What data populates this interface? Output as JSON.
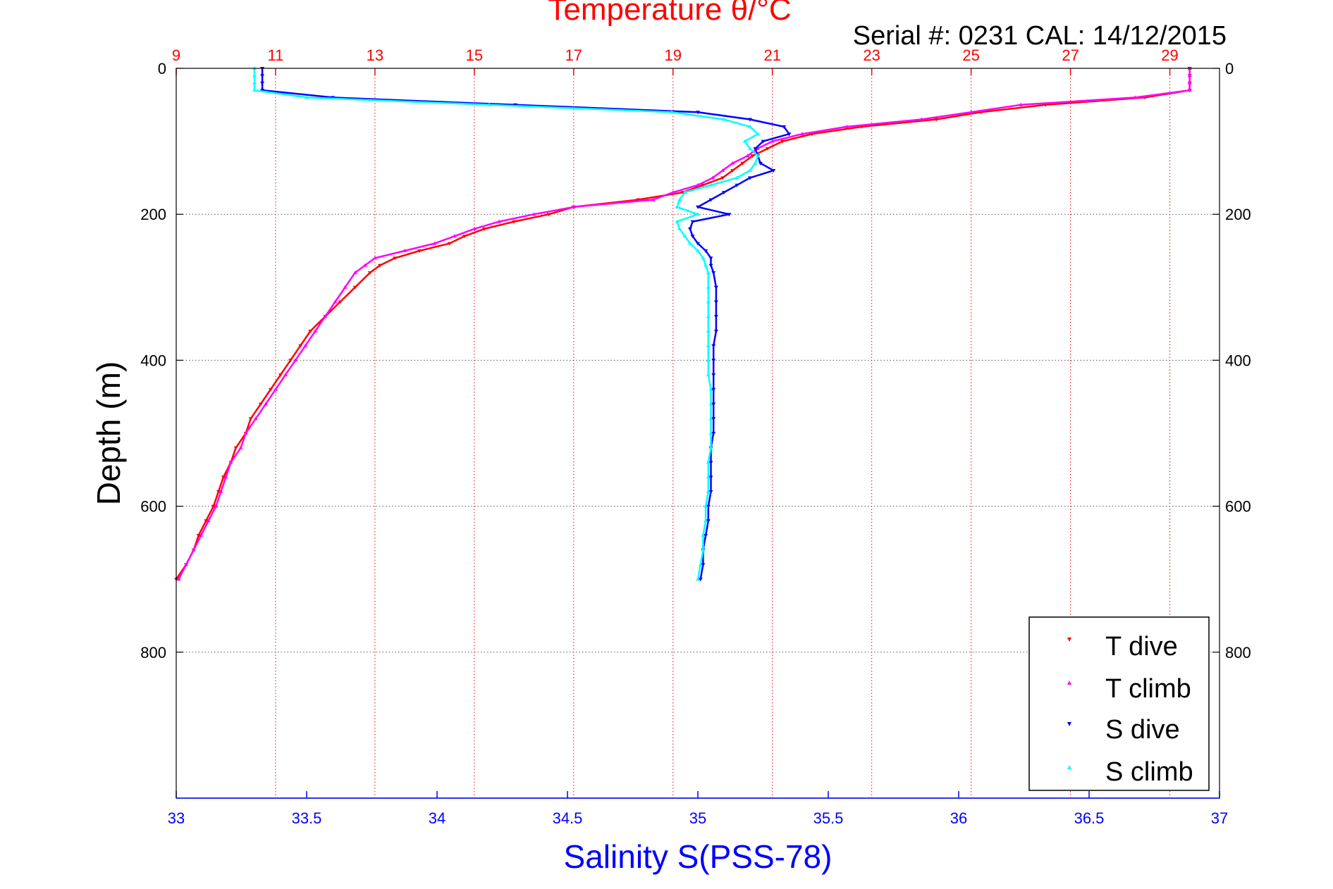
{
  "chart_data": {
    "type": "scatter",
    "title": "Temperature θ/°C",
    "subtitle": "Serial #: 0231  CAL: 14/12/2015",
    "xlabel": "Salinity S(PSS-78)",
    "ylabel": "Depth (m)",
    "y_reversed": true,
    "ylim": [
      0,
      1000
    ],
    "y_ticks": [
      0,
      200,
      400,
      600,
      800
    ],
    "x_top": {
      "label": "Temperature θ/°C",
      "lim": [
        9,
        30
      ],
      "ticks": [
        9,
        11,
        13,
        15,
        17,
        19,
        21,
        23,
        25,
        27,
        29
      ],
      "color": "#ff0000",
      "grid": "dotted-red"
    },
    "x_bottom": {
      "label": "Salinity S(PSS-78)",
      "lim": [
        33,
        37
      ],
      "ticks": [
        33,
        33.5,
        34,
        34.5,
        35,
        35.5,
        36,
        36.5,
        37
      ],
      "color": "#0000ff"
    },
    "y_grid": "dotted-black",
    "legend_position": "bottom-right",
    "series": [
      {
        "name": "T dive",
        "axis": "temperature",
        "color": "#ff0000",
        "marker": "triangle-down",
        "depth": [
          0,
          10,
          20,
          30,
          40,
          50,
          60,
          70,
          80,
          90,
          100,
          110,
          120,
          130,
          140,
          150,
          160,
          170,
          180,
          190,
          200,
          210,
          220,
          230,
          240,
          250,
          260,
          270,
          280,
          300,
          320,
          340,
          360,
          380,
          400,
          420,
          440,
          460,
          480,
          500,
          520,
          540,
          560,
          580,
          600,
          620,
          640,
          660,
          680,
          700
        ],
        "values": [
          29.4,
          29.4,
          29.4,
          29.4,
          28.5,
          26.5,
          25.2,
          24.3,
          22.8,
          21.8,
          21.2,
          20.9,
          20.6,
          20.4,
          20.2,
          20.0,
          19.6,
          19.2,
          18.3,
          17.0,
          16.5,
          15.8,
          15.2,
          14.8,
          14.5,
          13.9,
          13.4,
          13.1,
          12.9,
          12.6,
          12.3,
          12.0,
          11.7,
          11.5,
          11.3,
          11.1,
          10.9,
          10.7,
          10.5,
          10.4,
          10.2,
          10.1,
          9.95,
          9.85,
          9.75,
          9.6,
          9.45,
          9.35,
          9.2,
          9.0
        ]
      },
      {
        "name": "T climb",
        "axis": "temperature",
        "color": "#ff00ff",
        "marker": "triangle-up",
        "depth": [
          0,
          10,
          20,
          30,
          40,
          50,
          60,
          70,
          80,
          90,
          100,
          110,
          120,
          130,
          140,
          150,
          160,
          170,
          180,
          190,
          200,
          210,
          220,
          230,
          240,
          250,
          260,
          270,
          280,
          300,
          320,
          340,
          360,
          380,
          400,
          420,
          440,
          460,
          480,
          500,
          520,
          540,
          560,
          580,
          600,
          620,
          640,
          660,
          680,
          700
        ],
        "values": [
          29.4,
          29.4,
          29.4,
          29.4,
          28.3,
          26.0,
          25.0,
          24.0,
          22.5,
          21.6,
          21.0,
          20.7,
          20.5,
          20.2,
          20.0,
          19.8,
          19.5,
          19.0,
          18.6,
          17.0,
          16.2,
          15.5,
          15.0,
          14.6,
          14.2,
          13.6,
          13.0,
          12.8,
          12.6,
          12.4,
          12.2,
          12.0,
          11.8,
          11.6,
          11.4,
          11.2,
          11.0,
          10.8,
          10.6,
          10.4,
          10.3,
          10.1,
          10.0,
          9.9,
          9.8,
          9.65,
          9.5,
          9.35,
          9.2,
          9.05
        ]
      },
      {
        "name": "S dive",
        "axis": "salinity",
        "color": "#0000ff",
        "marker": "triangle-down",
        "depth": [
          0,
          10,
          20,
          30,
          40,
          50,
          60,
          70,
          80,
          90,
          100,
          110,
          120,
          130,
          140,
          150,
          160,
          170,
          180,
          190,
          200,
          210,
          220,
          230,
          240,
          250,
          260,
          270,
          280,
          300,
          320,
          340,
          360,
          380,
          400,
          420,
          440,
          460,
          480,
          500,
          520,
          540,
          560,
          580,
          600,
          620,
          640,
          660,
          680,
          700
        ],
        "values": [
          33.33,
          33.33,
          33.33,
          33.33,
          33.6,
          34.3,
          35.0,
          35.2,
          35.33,
          35.35,
          35.25,
          35.22,
          35.23,
          35.24,
          35.29,
          35.2,
          35.15,
          35.1,
          35.05,
          35.0,
          35.12,
          34.98,
          34.97,
          34.98,
          35.0,
          35.03,
          35.05,
          35.05,
          35.06,
          35.07,
          35.07,
          35.07,
          35.07,
          35.06,
          35.06,
          35.06,
          35.06,
          35.06,
          35.06,
          35.06,
          35.05,
          35.05,
          35.05,
          35.05,
          35.04,
          35.04,
          35.03,
          35.02,
          35.02,
          35.01
        ]
      },
      {
        "name": "S climb",
        "axis": "salinity",
        "color": "#00ffff",
        "marker": "triangle-up",
        "depth": [
          0,
          10,
          20,
          30,
          40,
          50,
          60,
          70,
          80,
          90,
          100,
          110,
          120,
          130,
          140,
          150,
          160,
          170,
          180,
          190,
          200,
          210,
          220,
          230,
          240,
          250,
          260,
          270,
          280,
          300,
          320,
          340,
          360,
          380,
          400,
          420,
          440,
          460,
          480,
          500,
          520,
          540,
          560,
          580,
          600,
          620,
          640,
          660,
          680,
          700
        ],
        "values": [
          33.3,
          33.3,
          33.3,
          33.3,
          33.5,
          34.2,
          34.9,
          35.1,
          35.2,
          35.23,
          35.18,
          35.2,
          35.23,
          35.22,
          35.2,
          35.15,
          35.05,
          34.95,
          34.93,
          34.92,
          35.0,
          34.92,
          34.93,
          34.95,
          34.97,
          35.0,
          35.02,
          35.03,
          35.04,
          35.04,
          35.04,
          35.04,
          35.04,
          35.04,
          35.04,
          35.04,
          35.05,
          35.05,
          35.05,
          35.05,
          35.05,
          35.04,
          35.04,
          35.04,
          35.03,
          35.03,
          35.02,
          35.02,
          35.01,
          35.0
        ]
      }
    ]
  }
}
